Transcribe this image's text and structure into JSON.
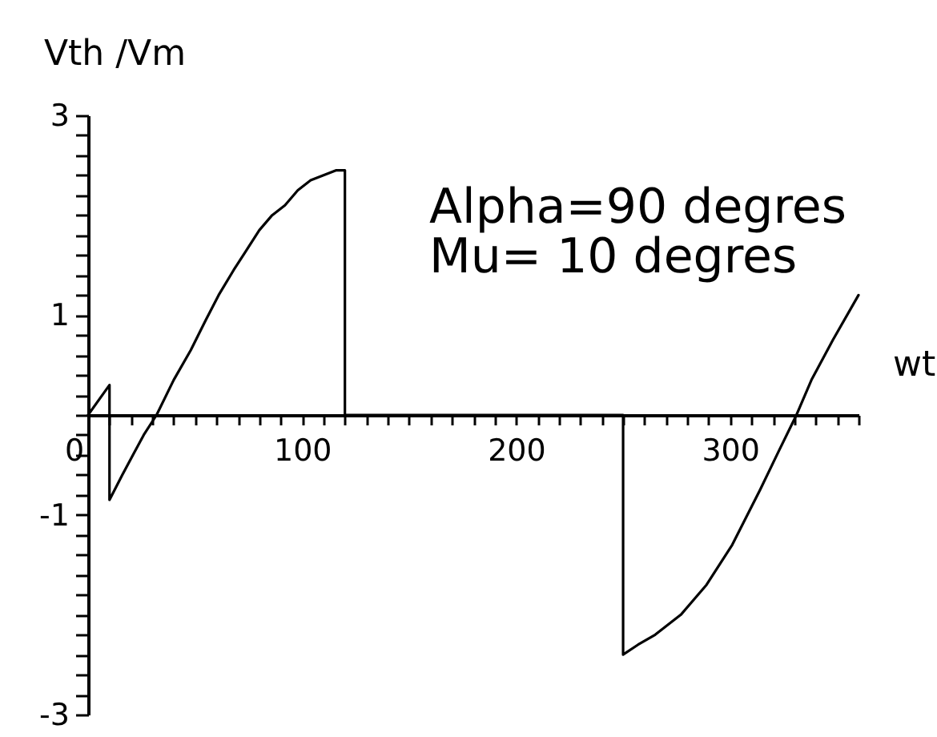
{
  "chart_data": {
    "type": "line",
    "xlabel": "wt",
    "ylabel": "Vth /Vm",
    "annotations": [
      "Alpha=90 degres",
      "Mu= 10 degres"
    ],
    "xlim": [
      0,
      360
    ],
    "ylim": [
      -3,
      3
    ],
    "xticks": [
      0,
      {
        "value": 10,
        "label": null
      },
      {
        "value": 20,
        "label": null
      },
      {
        "value": 30,
        "label": null
      },
      {
        "value": 40,
        "label": null
      },
      {
        "value": 50,
        "label": null
      },
      {
        "value": 60,
        "label": null
      },
      {
        "value": 70,
        "label": null
      },
      {
        "value": 80,
        "label": null
      },
      {
        "value": 90,
        "label": null
      },
      100,
      {
        "value": 110,
        "label": null
      },
      {
        "value": 120,
        "label": null
      },
      {
        "value": 130,
        "label": null
      },
      {
        "value": 140,
        "label": null
      },
      {
        "value": 150,
        "label": null
      },
      {
        "value": 160,
        "label": null
      },
      {
        "value": 170,
        "label": null
      },
      {
        "value": 180,
        "label": null
      },
      {
        "value": 190,
        "label": null
      },
      200,
      {
        "value": 210,
        "label": null
      },
      {
        "value": 220,
        "label": null
      },
      {
        "value": 230,
        "label": null
      },
      {
        "value": 240,
        "label": null
      },
      {
        "value": 250,
        "label": null
      },
      {
        "value": 260,
        "label": null
      },
      {
        "value": 270,
        "label": null
      },
      {
        "value": 280,
        "label": null
      },
      {
        "value": 290,
        "label": null
      },
      300,
      {
        "value": 310,
        "label": null
      },
      {
        "value": 320,
        "label": null
      },
      {
        "value": 330,
        "label": null
      },
      {
        "value": 340,
        "label": null
      },
      {
        "value": 350,
        "label": null
      },
      {
        "value": 360,
        "label": null
      }
    ],
    "yticks": [
      -3,
      {
        "value": -2.8,
        "label": null
      },
      {
        "value": -2.6,
        "label": null
      },
      {
        "value": -2.4,
        "label": null
      },
      {
        "value": -2.2,
        "label": null
      },
      {
        "value": -2,
        "label": null
      },
      {
        "value": -1.8,
        "label": null
      },
      {
        "value": -1.6,
        "label": null
      },
      {
        "value": -1.4,
        "label": null
      },
      {
        "value": -1.2,
        "label": null
      },
      -1,
      {
        "value": -0.8,
        "label": null
      },
      {
        "value": -0.6,
        "label": null
      },
      {
        "value": -0.4,
        "label": null
      },
      {
        "value": -0.2,
        "label": null
      },
      {
        "value": 0,
        "label": null
      },
      {
        "value": 0.2,
        "label": null
      },
      {
        "value": 0.4,
        "label": null
      },
      {
        "value": 0.6,
        "label": null
      },
      {
        "value": 0.8,
        "label": null
      },
      1,
      {
        "value": 1.2,
        "label": null
      },
      {
        "value": 1.4,
        "label": null
      },
      {
        "value": 1.6,
        "label": null
      },
      {
        "value": 1.8,
        "label": null
      },
      {
        "value": 2,
        "label": null
      },
      {
        "value": 2.2,
        "label": null
      },
      {
        "value": 2.4,
        "label": null
      },
      {
        "value": 2.6,
        "label": null
      },
      {
        "value": 2.8,
        "label": null
      },
      3
    ],
    "grid": false,
    "marker": "none",
    "line_style": "solid",
    "x": [
      0,
      10,
      10,
      16,
      21,
      26,
      32,
      40,
      48,
      55,
      61,
      68,
      74,
      80,
      86,
      92,
      98,
      104,
      110,
      116,
      120,
      120,
      250,
      250,
      257,
      265,
      277,
      289,
      301,
      314,
      323,
      331,
      338,
      348,
      360
    ],
    "series": [
      {
        "color": "#000000",
        "values": [
          0,
          0.3,
          -0.85,
          -0.6,
          -0.4,
          -0.2,
          0,
          0.35,
          0.65,
          0.95,
          1.2,
          1.45,
          1.65,
          1.85,
          2.0,
          2.1,
          2.25,
          2.35,
          2.4,
          2.45,
          2.45,
          0,
          0,
          -2.4,
          -2.3,
          -2.2,
          -2.0,
          -1.7,
          -1.3,
          -0.75,
          -0.35,
          0,
          0.35,
          0.75,
          1.2
        ]
      }
    ]
  }
}
